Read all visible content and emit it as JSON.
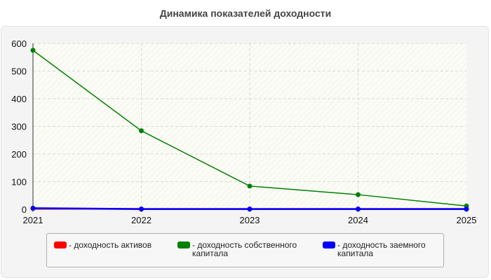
{
  "title": "Динамика показателей доходности",
  "chart_data": {
    "type": "line",
    "title": "Динамика показателей доходности",
    "xlabel": "",
    "ylabel": "",
    "x": [
      "2021",
      "2022",
      "2023",
      "2024",
      "2025"
    ],
    "ylim": [
      0,
      600
    ],
    "yticks": [
      0,
      100,
      200,
      300,
      400,
      500,
      600
    ],
    "grid": true,
    "legend_position": "bottom",
    "series": [
      {
        "name": "- доходность активов",
        "color": "#ff0000",
        "values": [
          3,
          1,
          1,
          1,
          1
        ]
      },
      {
        "name": "- доходность собственного капитала",
        "color": "#008000",
        "values": [
          575,
          284,
          84,
          53,
          12
        ]
      },
      {
        "name": "- доходность заемного капитала",
        "color": "#0000ff",
        "values": [
          4,
          1,
          1,
          1,
          1
        ]
      }
    ]
  }
}
